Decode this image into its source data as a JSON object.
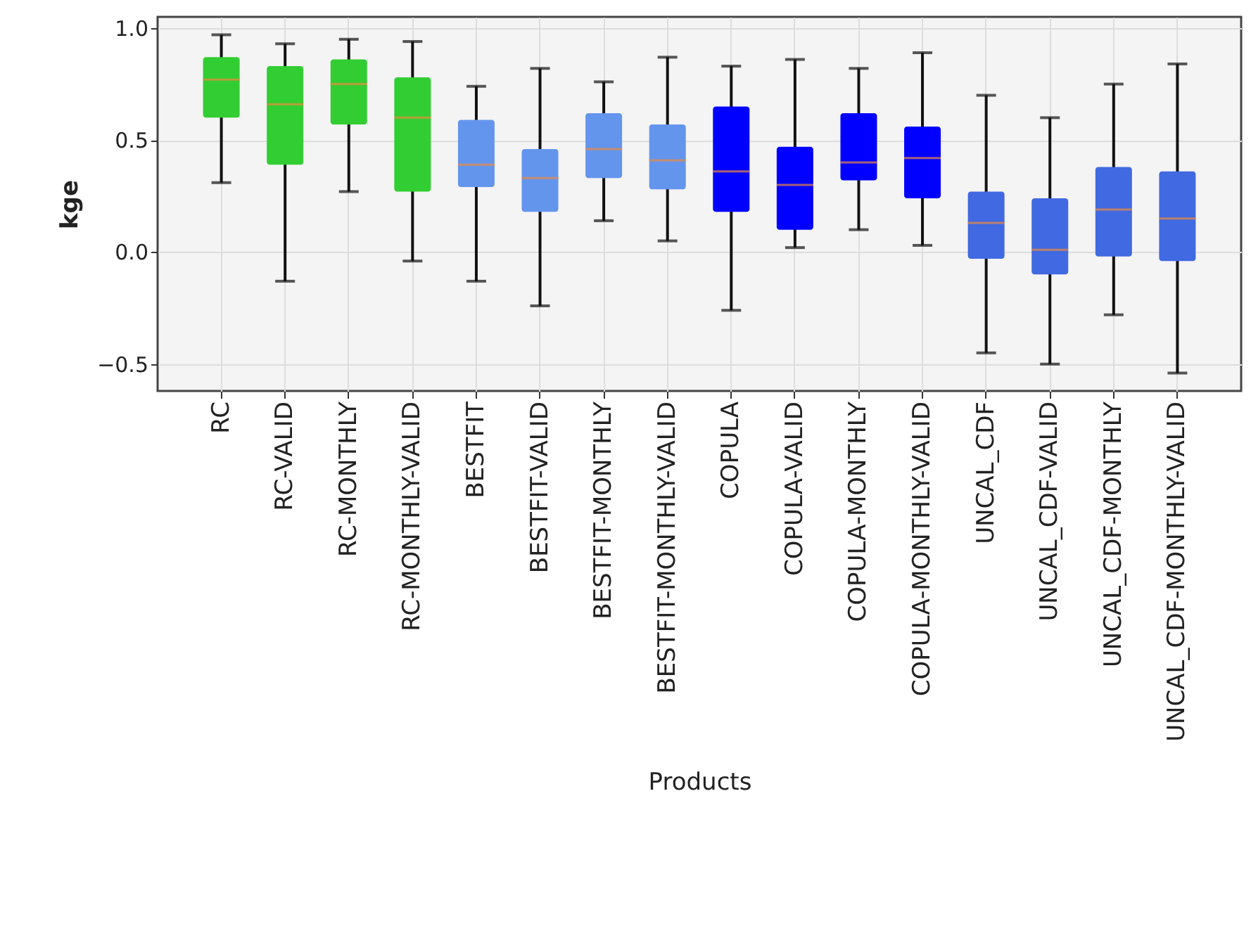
{
  "chart_data": {
    "type": "box",
    "xlabel": "Products",
    "ylabel": "kge",
    "categories": [
      "RC",
      "RC-VALID",
      "RC-MONTHLY",
      "RC-MONTHLY-VALID",
      "BESTFIT",
      "BESTFIT-VALID",
      "BESTFIT-MONTHLY",
      "BESTFIT-MONTHLY-VALID",
      "COPULA",
      "COPULA-VALID",
      "COPULA-MONTHLY",
      "COPULA-MONTHLY-VALID",
      "UNCAL_CDF",
      "UNCAL_CDF-VALID",
      "UNCAL_CDF-MONTHLY",
      "UNCAL_CDF-MONTHLY-VALID"
    ],
    "colors": [
      "#32cd32",
      "#32cd32",
      "#32cd32",
      "#32cd32",
      "#6495ed",
      "#6495ed",
      "#6495ed",
      "#6495ed",
      "#0000ff",
      "#0000ff",
      "#0000ff",
      "#0000ff",
      "#4169e1",
      "#4169e1",
      "#4169e1",
      "#4169e1"
    ],
    "boxes": [
      {
        "low": 0.31,
        "q1": 0.6,
        "median": 0.77,
        "q3": 0.87,
        "high": 0.97
      },
      {
        "low": -0.13,
        "q1": 0.39,
        "median": 0.66,
        "q3": 0.83,
        "high": 0.93
      },
      {
        "low": 0.27,
        "q1": 0.57,
        "median": 0.75,
        "q3": 0.86,
        "high": 0.95
      },
      {
        "low": -0.04,
        "q1": 0.27,
        "median": 0.6,
        "q3": 0.78,
        "high": 0.94
      },
      {
        "low": -0.13,
        "q1": 0.29,
        "median": 0.39,
        "q3": 0.59,
        "high": 0.74
      },
      {
        "low": -0.24,
        "q1": 0.18,
        "median": 0.33,
        "q3": 0.46,
        "high": 0.82
      },
      {
        "low": 0.14,
        "q1": 0.33,
        "median": 0.46,
        "q3": 0.62,
        "high": 0.76
      },
      {
        "low": 0.05,
        "q1": 0.28,
        "median": 0.41,
        "q3": 0.57,
        "high": 0.87
      },
      {
        "low": -0.26,
        "q1": 0.18,
        "median": 0.36,
        "q3": 0.65,
        "high": 0.83
      },
      {
        "low": 0.02,
        "q1": 0.1,
        "median": 0.3,
        "q3": 0.47,
        "high": 0.86
      },
      {
        "low": 0.1,
        "q1": 0.32,
        "median": 0.4,
        "q3": 0.62,
        "high": 0.82
      },
      {
        "low": 0.03,
        "q1": 0.24,
        "median": 0.42,
        "q3": 0.56,
        "high": 0.89
      },
      {
        "low": -0.45,
        "q1": -0.03,
        "median": 0.13,
        "q3": 0.27,
        "high": 0.7
      },
      {
        "low": -0.5,
        "q1": -0.1,
        "median": 0.01,
        "q3": 0.24,
        "high": 0.6
      },
      {
        "low": -0.28,
        "q1": -0.02,
        "median": 0.19,
        "q3": 0.38,
        "high": 0.75
      },
      {
        "low": -0.54,
        "q1": -0.04,
        "median": 0.15,
        "q3": 0.36,
        "high": 0.84
      }
    ],
    "ylim": [
      -0.62,
      1.05
    ],
    "yticks": [
      {
        "value": -0.5,
        "label": "−0.5"
      },
      {
        "value": 0,
        "label": "0.0"
      },
      {
        "value": 0.5,
        "label": "0.5"
      },
      {
        "value": 1,
        "label": "1.0"
      }
    ],
    "grid": true
  }
}
